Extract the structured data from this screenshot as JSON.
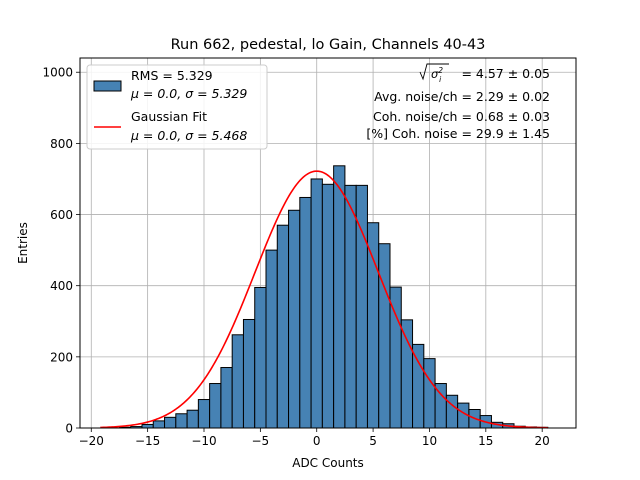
{
  "chart_data": {
    "type": "bar",
    "title": "Run 662, pedestal, lo Gain, Channels 40-43",
    "xlabel": "ADC Counts",
    "ylabel": "Entries",
    "xlim": [
      -21,
      23
    ],
    "ylim": [
      0,
      1040
    ],
    "xticks": [
      -20,
      -15,
      -10,
      -5,
      0,
      5,
      10,
      15,
      20
    ],
    "yticks": [
      0,
      200,
      400,
      600,
      800,
      1000
    ],
    "grid": true,
    "bin_width": 1,
    "bar_color": "#4682b4",
    "fit_color": "#ff0000",
    "histogram": {
      "bin_centers": [
        -17,
        -16,
        -15,
        -14,
        -13,
        -12,
        -11,
        -10,
        -9,
        -8,
        -7,
        -6,
        -5,
        -4,
        -3,
        -2,
        -1,
        0,
        1,
        2,
        3,
        4,
        5,
        6,
        7,
        8,
        9,
        10,
        11,
        12,
        13,
        14,
        15,
        16,
        17,
        18,
        19,
        20
      ],
      "counts": [
        2,
        4,
        10,
        20,
        30,
        40,
        50,
        80,
        125,
        170,
        262,
        305,
        395,
        500,
        570,
        612,
        648,
        700,
        685,
        737,
        682,
        682,
        577,
        518,
        396,
        304,
        235,
        195,
        125,
        92,
        70,
        52,
        35,
        16,
        12,
        5,
        3,
        2
      ]
    },
    "gaussian_fit": {
      "mu": 0.0,
      "sigma": 5.468,
      "amplitude": 722,
      "x_range": [
        -19.2,
        20.5
      ]
    },
    "legend": {
      "position": "top-left",
      "entries": [
        {
          "label_line1": "RMS = 5.329",
          "label_line2": "μ = 0.0, σ = 5.329",
          "symbol": "patch"
        },
        {
          "label_line1": "Gaussian Fit",
          "label_line2": "μ = 0.0, σ = 5.468",
          "symbol": "line"
        }
      ]
    },
    "annotations": {
      "line1_value": "= 4.57 ± 0.05",
      "line2": "Avg. noise/ch = 2.29 ± 0.02",
      "line3": "Coh. noise/ch = 0.68 ± 0.03",
      "line4": "[%] Coh. noise = 29.9 ± 1.45"
    }
  }
}
